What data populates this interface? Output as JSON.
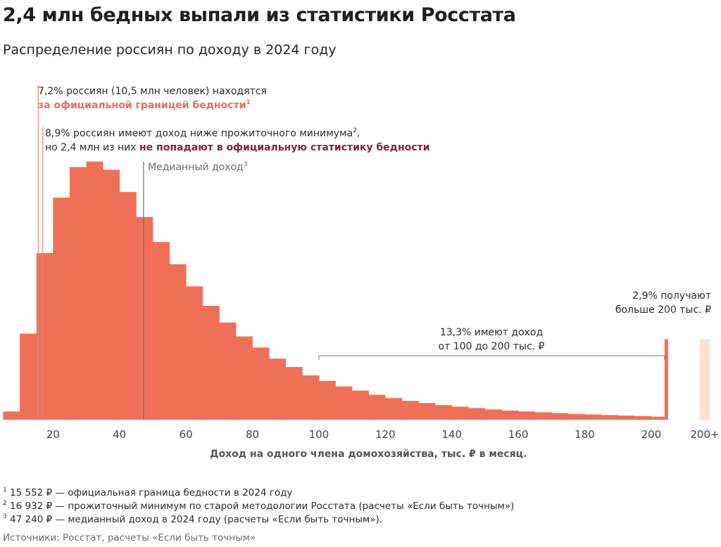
{
  "header": {
    "title": "2,4 млн бедных выпали из статистики Росстата",
    "subtitle": "Распределение россиян по доходу в 2024 году"
  },
  "annotations": {
    "poverty_line": {
      "text1": "7,2% россиян (10,5 млн человек) находятся",
      "text2": "за официальной границей бедности",
      "sup": "1"
    },
    "subsistence": {
      "text1": "8,9% россиян имеют доход ниже прожиточного минимума",
      "sup": "2",
      "text1_end": ",",
      "text2_start": "но 2,4 млн из них ",
      "text2_highlight": "не попадают в официальную статистику бедности"
    },
    "median": {
      "text": "Медианный доход",
      "sup": "3"
    },
    "top": {
      "line1": "2,9% получают",
      "line2": "больше 200 тыс. ₽"
    },
    "range": {
      "line1": "13,3% имеют доход",
      "line2": "от 100 до 200 тыс. ₽"
    }
  },
  "footnotes": [
    {
      "num": "1",
      "text": "15 552 ₽ — официальная граница бедности в 2024 году"
    },
    {
      "num": "2",
      "text": "16 932 ₽ — прожиточный минимум по старой методологии Росстата (расчеты «Если быть точным»)"
    },
    {
      "num": "3",
      "text": "47 240 ₽ — медианный доход в 2024 году (расчеты «Если быть точным»)."
    }
  ],
  "source": "Источники: Росстат, расчеты «Если быть точным»",
  "chart_data": {
    "type": "bar",
    "title": "Распределение россиян по доходу в 2024 году",
    "xlabel": "Доход на одного члена домохозяйства, тыс. ₽ в месяц.",
    "ylabel": "",
    "bin_width": 5,
    "x_ticks": [
      20,
      40,
      60,
      80,
      100,
      120,
      140,
      160,
      180,
      200
    ],
    "x_tick_extra": "200+",
    "xlim": [
      5,
      205
    ],
    "bins": [
      {
        "x0": 5,
        "x1": 10,
        "value": 0.3
      },
      {
        "x0": 10,
        "x1": 15,
        "value": 3.1
      },
      {
        "x0": 15,
        "x1": 20,
        "value": 6.0
      },
      {
        "x0": 20,
        "x1": 25,
        "value": 8.0
      },
      {
        "x0": 25,
        "x1": 30,
        "value": 9.1
      },
      {
        "x0": 30,
        "x1": 35,
        "value": 9.3
      },
      {
        "x0": 35,
        "x1": 40,
        "value": 9.0
      },
      {
        "x0": 40,
        "x1": 45,
        "value": 8.2
      },
      {
        "x0": 45,
        "x1": 50,
        "value": 7.3
      },
      {
        "x0": 50,
        "x1": 55,
        "value": 6.4
      },
      {
        "x0": 55,
        "x1": 60,
        "value": 5.6
      },
      {
        "x0": 60,
        "x1": 65,
        "value": 4.8
      },
      {
        "x0": 65,
        "x1": 70,
        "value": 4.1
      },
      {
        "x0": 70,
        "x1": 75,
        "value": 3.5
      },
      {
        "x0": 75,
        "x1": 80,
        "value": 3.0
      },
      {
        "x0": 80,
        "x1": 85,
        "value": 2.6
      },
      {
        "x0": 85,
        "x1": 90,
        "value": 2.2
      },
      {
        "x0": 90,
        "x1": 95,
        "value": 1.9
      },
      {
        "x0": 95,
        "x1": 100,
        "value": 1.6
      },
      {
        "x0": 100,
        "x1": 105,
        "value": 1.4
      },
      {
        "x0": 105,
        "x1": 110,
        "value": 1.2
      },
      {
        "x0": 110,
        "x1": 115,
        "value": 1.05
      },
      {
        "x0": 115,
        "x1": 120,
        "value": 0.9
      },
      {
        "x0": 120,
        "x1": 125,
        "value": 0.78
      },
      {
        "x0": 125,
        "x1": 130,
        "value": 0.68
      },
      {
        "x0": 130,
        "x1": 135,
        "value": 0.6
      },
      {
        "x0": 135,
        "x1": 140,
        "value": 0.53
      },
      {
        "x0": 140,
        "x1": 145,
        "value": 0.47
      },
      {
        "x0": 145,
        "x1": 150,
        "value": 0.42
      },
      {
        "x0": 150,
        "x1": 155,
        "value": 0.37
      },
      {
        "x0": 155,
        "x1": 160,
        "value": 0.33
      },
      {
        "x0": 160,
        "x1": 165,
        "value": 0.3
      },
      {
        "x0": 165,
        "x1": 170,
        "value": 0.27
      },
      {
        "x0": 170,
        "x1": 175,
        "value": 0.24
      },
      {
        "x0": 175,
        "x1": 180,
        "value": 0.21
      },
      {
        "x0": 180,
        "x1": 185,
        "value": 0.19
      },
      {
        "x0": 185,
        "x1": 190,
        "value": 0.17
      },
      {
        "x0": 190,
        "x1": 195,
        "value": 0.15
      },
      {
        "x0": 195,
        "x1": 200,
        "value": 0.13
      },
      {
        "x0": 200,
        "x1": 204,
        "value": 0.11
      },
      {
        "x0": 204,
        "x1": 205,
        "value": 2.9
      }
    ],
    "reference_lines": [
      {
        "label": "official_poverty_line",
        "x": 15.552
      },
      {
        "label": "subsistence_minimum",
        "x": 16.932
      },
      {
        "label": "median_income",
        "x": 47.24
      }
    ],
    "range_bracket": [
      100,
      204
    ],
    "bar_value_200_plus": 2.9,
    "colors": {
      "bar": "#f07057",
      "bar_200_plus_shadow": "#fbe1d6",
      "median_line": "#707070",
      "ref_line": "#e2836f"
    }
  }
}
